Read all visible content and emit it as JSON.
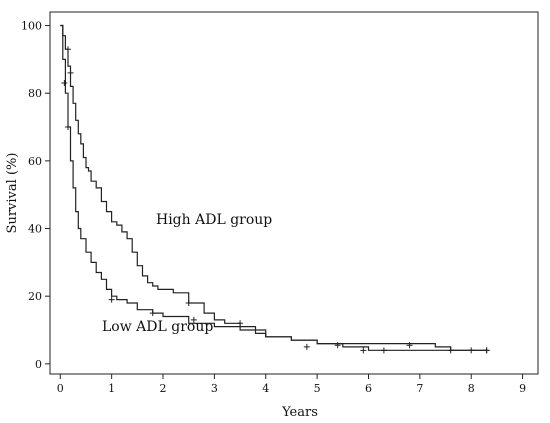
{
  "chart_data": {
    "type": "line",
    "xlabel": "Years",
    "ylabel": "Survival (%)",
    "xlim": [
      -0.2,
      9.3
    ],
    "ylim": [
      -3,
      104
    ],
    "xticks": [
      0,
      1,
      2,
      3,
      4,
      5,
      6,
      7,
      8,
      9
    ],
    "yticks": [
      0,
      20,
      40,
      60,
      80,
      100
    ],
    "grid": false,
    "annotations": [
      {
        "text": "High ADL group",
        "x": 1.6,
        "y": 40
      },
      {
        "text": "Low ADL group",
        "x": 0.5,
        "y": 8
      }
    ],
    "series": [
      {
        "name": "High ADL group",
        "step": true,
        "x": [
          0,
          0.05,
          0.1,
          0.15,
          0.2,
          0.25,
          0.3,
          0.35,
          0.4,
          0.45,
          0.5,
          0.55,
          0.6,
          0.7,
          0.8,
          0.9,
          1.0,
          1.1,
          1.2,
          1.3,
          1.4,
          1.5,
          1.6,
          1.7,
          1.8,
          1.9,
          2.0,
          2.2,
          2.5,
          2.8,
          3.0,
          3.2,
          3.5,
          3.8,
          4.0,
          4.5,
          5.0,
          5.5,
          6.0,
          6.5,
          7.0,
          7.5,
          8.0,
          8.3
        ],
        "y": [
          100,
          97,
          93,
          88,
          82,
          77,
          72,
          68,
          65,
          61,
          58,
          57,
          54,
          52,
          48,
          45,
          42,
          41,
          39,
          37,
          33,
          29,
          26,
          24,
          23,
          22,
          22,
          21,
          18,
          15,
          13,
          12,
          11,
          9,
          8,
          7,
          6,
          5,
          4,
          4,
          4,
          4,
          4,
          4
        ]
      },
      {
        "name": "Low ADL group",
        "step": true,
        "x": [
          0,
          0.05,
          0.1,
          0.15,
          0.2,
          0.25,
          0.3,
          0.35,
          0.4,
          0.5,
          0.6,
          0.7,
          0.8,
          0.9,
          1.0,
          1.1,
          1.3,
          1.5,
          1.8,
          2.0,
          2.5,
          3.0,
          3.5,
          4.0,
          4.5,
          5.0,
          5.5,
          6.0,
          6.5,
          7.0,
          7.3,
          7.6,
          8.0,
          8.3
        ],
        "y": [
          100,
          90,
          80,
          70,
          60,
          52,
          45,
          40,
          37,
          33,
          30,
          27,
          25,
          22,
          20,
          19,
          18,
          16,
          15,
          14,
          12,
          11,
          10,
          8,
          7,
          6,
          6,
          6,
          6,
          6,
          5,
          4,
          4,
          4
        ]
      }
    ],
    "censor_marks": {
      "High ADL group": [
        [
          0.15,
          93
        ],
        [
          0.2,
          86
        ],
        [
          2.5,
          18
        ],
        [
          3.5,
          12
        ],
        [
          5.4,
          5.5
        ],
        [
          6.8,
          5.5
        ],
        [
          8.3,
          4
        ]
      ],
      "Low ADL group": [
        [
          0.08,
          83
        ],
        [
          0.15,
          70
        ],
        [
          1.0,
          19
        ],
        [
          1.8,
          15
        ],
        [
          2.6,
          13
        ],
        [
          4.8,
          5
        ],
        [
          5.9,
          4
        ],
        [
          6.3,
          4
        ],
        [
          7.6,
          4
        ],
        [
          8.0,
          4
        ],
        [
          8.3,
          4
        ]
      ]
    },
    "line_color": "#222222"
  }
}
